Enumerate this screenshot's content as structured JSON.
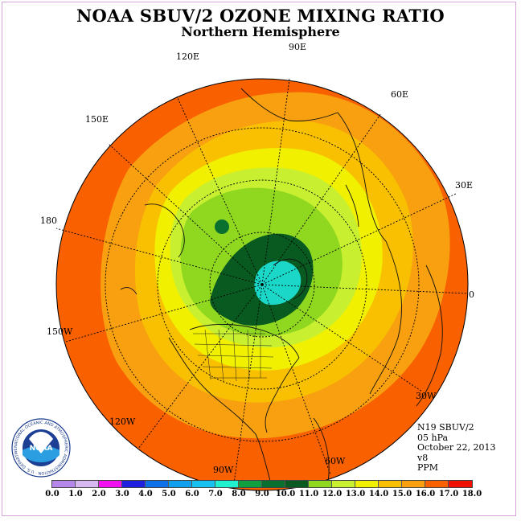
{
  "title": "NOAA SBUV/2 OZONE MIXING RATIO",
  "subtitle": "Northern Hemisphere",
  "longitude_labels": [
    "90E",
    "60E",
    "30E",
    "0",
    "30W",
    "60W",
    "90W",
    "120W",
    "150W",
    "180",
    "150E",
    "120E"
  ],
  "info": {
    "satellite": "N19 SBUV/2",
    "level": "05 hPa",
    "date": "October 22, 2013",
    "version": "v8",
    "units": "PPM"
  },
  "colorbar": {
    "ticks": [
      "0.0",
      "1.0",
      "2.0",
      "3.0",
      "4.0",
      "5.0",
      "6.0",
      "7.0",
      "8.0",
      "9.0",
      "10.0",
      "11.0",
      "12.0",
      "13.0",
      "14.0",
      "15.0",
      "16.0",
      "17.0",
      "18.0"
    ],
    "colors": [
      "#b487e8",
      "#d8b8f0",
      "#f010f0",
      "#2020e0",
      "#1070e8",
      "#10a0ee",
      "#18c0f0",
      "#20f0d0",
      "#10a040",
      "#0a7030",
      "#085a20",
      "#90d820",
      "#c8f030",
      "#f0f000",
      "#f8c000",
      "#f8a010",
      "#f86000",
      "#f01000",
      "#8a5a3a"
    ]
  },
  "logo": {
    "text": "NOAA",
    "ring_text": "NATIONAL OCEANIC AND ATMOSPHERIC ADMINISTRATION · U.S. DEPARTMENT OF COMMERCE"
  },
  "map_data": {
    "projection": "polar stereographic",
    "hemisphere": "northern",
    "field": "ozone mixing ratio",
    "max_region_value_range": [
      10.0,
      11.0
    ],
    "outer_ring_value_range": [
      15.0,
      16.0
    ]
  }
}
